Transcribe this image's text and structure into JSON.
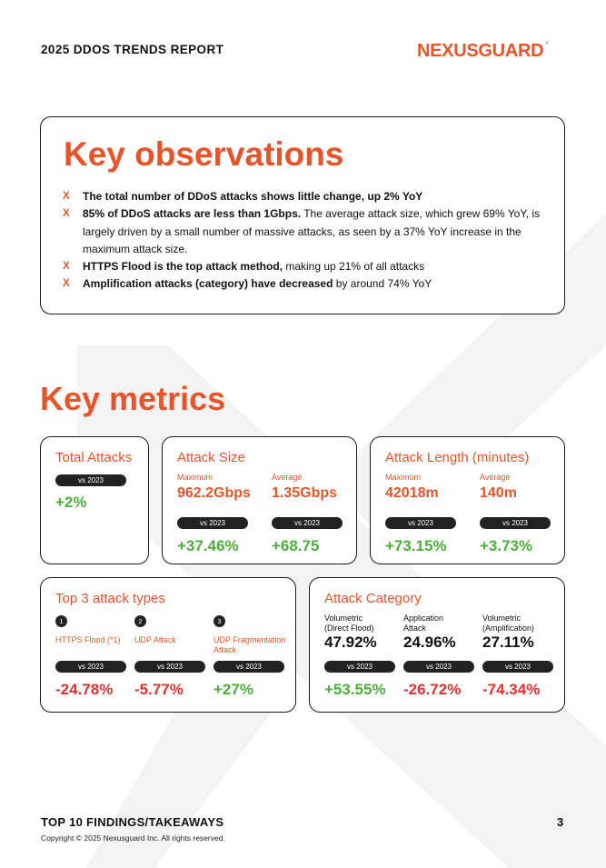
{
  "header": {
    "report_title": "2025 DDOS TRENDS REPORT",
    "logo_part1": "NEXUS",
    "logo_part2": "GUARD",
    "logo_reg": "®"
  },
  "observations": {
    "title": "Key observations",
    "bullet": "X",
    "items": [
      {
        "bold": "The total number of DDoS attacks shows little change, up 2% YoY",
        "rest": ""
      },
      {
        "bold": "85% of DDoS attacks are less than 1Gbps.",
        "rest": " The average attack size, which grew 69% YoY, is largely driven by a small number of massive attacks, as seen by a 37% YoY increase in the maximum attack size."
      },
      {
        "bold": "HTTPS Flood is the top attack method,",
        "rest": " making up 21% of all attacks"
      },
      {
        "bold": "Amplification attacks (category) have decreased",
        "rest": " by around 74% YoY"
      }
    ]
  },
  "metrics": {
    "title": "Key metrics",
    "vs_label": "vs 2023",
    "total_attacks": {
      "title": "Total Attacks",
      "change": "+2%"
    },
    "attack_size": {
      "title": "Attack Size",
      "max_label": "Maximum",
      "max_value": "962.2Gbps",
      "max_change": "+37.46%",
      "avg_label": "Average",
      "avg_value": "1.35Gbps",
      "avg_change": "+68.75"
    },
    "attack_length": {
      "title": "Attack Length (minutes)",
      "max_label": "Maximum",
      "max_value": "42018m",
      "max_change": "+73.15%",
      "avg_label": "Average",
      "avg_value": "140m",
      "avg_change": "+3.73%"
    },
    "top3": {
      "title": "Top 3 attack types",
      "types": [
        {
          "num": "1",
          "name": "HTTPS Flood (*1)",
          "change": "-24.78%"
        },
        {
          "num": "2",
          "name": "UDP Attack",
          "change": "-5.77%"
        },
        {
          "num": "3",
          "name": "UDP Fragmentation Attack",
          "change": "+27%"
        }
      ]
    },
    "category": {
      "title": "Attack Category",
      "items": [
        {
          "line1": "Volumetric",
          "line2": "(Direct Flood)",
          "value": "47.92%",
          "change": "+53.55%"
        },
        {
          "line1": "Application",
          "line2": "Attack",
          "value": "24.96%",
          "change": "-26.72%"
        },
        {
          "line1": "Volumetric",
          "line2": "(Amplification)",
          "value": "27.11%",
          "change": "-74.34%"
        }
      ]
    }
  },
  "footer": {
    "section": "TOP 10 FINDINGS/TAKEAWAYS",
    "copyright": "Copyright © 2025 Nexusguard Inc. All rights reserved.",
    "page_number": "3"
  },
  "colors": {
    "accent": "#e8542a",
    "positive": "#4caf39",
    "negative": "#e63030",
    "dark": "#222222"
  }
}
